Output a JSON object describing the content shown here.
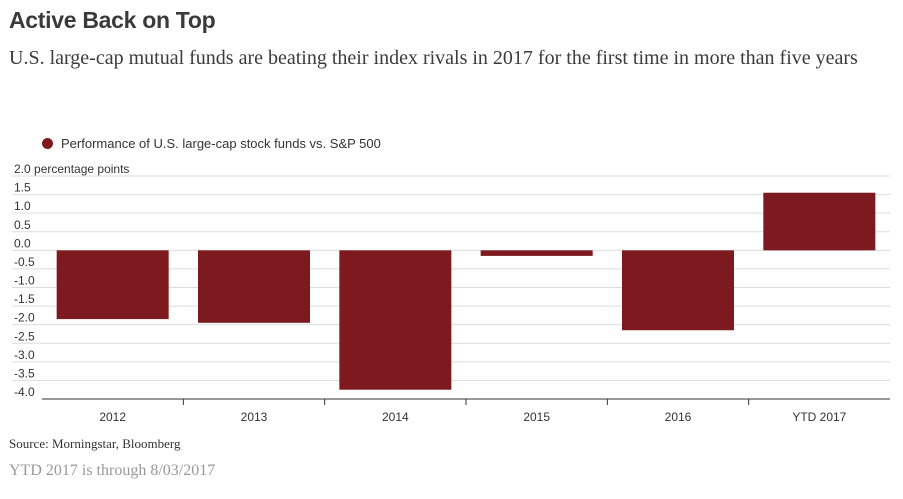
{
  "title": "Active Back on Top",
  "subtitle": "U.S. large-cap mutual funds are beating their index rivals in 2017 for the first time in more than five years",
  "source": "Source: Morningstar, Bloomberg",
  "note": "YTD 2017 is through 8/03/2017",
  "colors": {
    "bar": "#7d1a20",
    "grid": "#dddddd",
    "axis": "#333333"
  },
  "chart_data": {
    "type": "bar",
    "categories": [
      "2012",
      "2013",
      "2014",
      "2015",
      "2016",
      "YTD 2017"
    ],
    "series": [
      {
        "name": "Performance of U.S. large-cap stock funds vs. S&P 500",
        "values": [
          -1.85,
          -1.95,
          -3.75,
          -0.15,
          -2.15,
          1.55
        ]
      }
    ],
    "yunit": "percentage points",
    "ylim": [
      -4.0,
      2.0
    ],
    "yticks": [
      2.0,
      1.5,
      1.0,
      0.5,
      0.0,
      -0.5,
      -1.0,
      -1.5,
      -2.0,
      -2.5,
      -3.0,
      -3.5,
      -4.0
    ],
    "ytick_labels": [
      "2.0 percentage points",
      "1.5",
      "1.0",
      "0.5",
      "0.0",
      "-0.5",
      "-1.0",
      "-1.5",
      "-2.0",
      "-2.5",
      "-3.0",
      "-3.5",
      "-4.0"
    ],
    "grid": true,
    "legend_position": "top-left"
  }
}
